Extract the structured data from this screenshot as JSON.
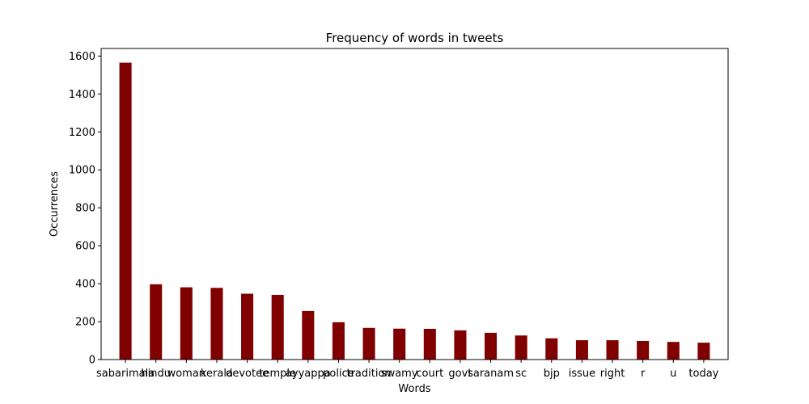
{
  "chart_data": {
    "type": "bar",
    "title": "Frequency of words in tweets",
    "xlabel": "Words",
    "ylabel": "Occurrences",
    "ylim": [
      0,
      1640
    ],
    "yticks": [
      0,
      200,
      400,
      600,
      800,
      1000,
      1200,
      1400,
      1600
    ],
    "grid": false,
    "bar_color": "#800000",
    "categories": [
      "sabarimala",
      "hindu",
      "woman",
      "kerala",
      "devotee",
      "temple",
      "ayyappa",
      "police",
      "tradition",
      "swamy",
      "court",
      "govt",
      "saranam",
      "sc",
      "bjp",
      "issue",
      "right",
      "r",
      "u",
      "today"
    ],
    "values": [
      1565,
      397,
      381,
      378,
      347,
      341,
      256,
      197,
      167,
      163,
      162,
      154,
      141,
      127,
      112,
      102,
      102,
      98,
      93,
      89
    ]
  }
}
